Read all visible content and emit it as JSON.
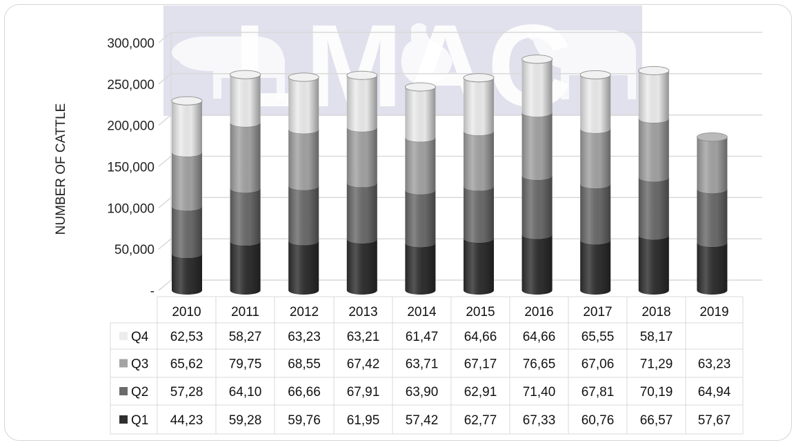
{
  "watermark": {
    "text": "LMAC"
  },
  "chart_data": {
    "type": "bar",
    "stacked": true,
    "shape": "cylinder-3d",
    "ylabel": "NUMBER OF CATTLE",
    "ylim": [
      0,
      300000
    ],
    "ytick_labels": [
      "-",
      "50,000",
      "100,000",
      "150,000",
      "200,000",
      "250,000",
      "300,000"
    ],
    "grid": true,
    "legend": "data-table",
    "categories": [
      "2010",
      "2011",
      "2012",
      "2013",
      "2014",
      "2015",
      "2016",
      "2017",
      "2018",
      "2019"
    ],
    "series": [
      {
        "name": "Q4",
        "color": "#ececec",
        "values": [
          62530,
          58270,
          63230,
          63210,
          61470,
          64660,
          64660,
          65550,
          58170,
          null
        ],
        "labels": [
          "62,53",
          "58,27",
          "63,23",
          "63,21",
          "61,47",
          "64,66",
          "64,66",
          "65,55",
          "58,17",
          ""
        ]
      },
      {
        "name": "Q3",
        "color": "#a3a3a3",
        "values": [
          65620,
          79750,
          68550,
          67420,
          63710,
          67170,
          76650,
          67060,
          71290,
          63230
        ],
        "labels": [
          "65,62",
          "79,75",
          "68,55",
          "67,42",
          "63,71",
          "67,17",
          "76,65",
          "67,06",
          "71,29",
          "63,23"
        ]
      },
      {
        "name": "Q2",
        "color": "#6b6b6b",
        "values": [
          57280,
          64100,
          66660,
          67910,
          63900,
          62910,
          71400,
          67810,
          70190,
          64940
        ],
        "labels": [
          "57,28",
          "64,10",
          "66,66",
          "67,91",
          "63,90",
          "62,91",
          "71,40",
          "67,81",
          "70,19",
          "64,94"
        ]
      },
      {
        "name": "Q1",
        "color": "#303030",
        "values": [
          44230,
          59280,
          59760,
          61950,
          57420,
          62770,
          67330,
          60760,
          66570,
          57670
        ],
        "labels": [
          "44,23",
          "59,28",
          "59,76",
          "61,95",
          "57,42",
          "62,77",
          "67,33",
          "60,76",
          "66,57",
          "57,67"
        ]
      }
    ]
  }
}
